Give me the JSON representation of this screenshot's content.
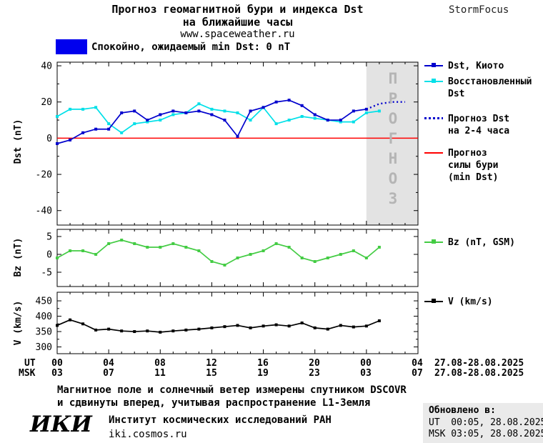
{
  "header": {
    "title_line1": "Прогноз геомагнитной бури и индекса Dst",
    "title_line2": "на ближайшие часы",
    "website": "www.spaceweather.ru",
    "brand": "StormFocus"
  },
  "status": {
    "label": "Спокойно, ожидаемый min Dst: 0 nT",
    "box_color": "#0000EE"
  },
  "forecast_band": {
    "label": "ПРОГНОЗ",
    "fill": "#E3E3E3",
    "text_color": "#B5B5B5"
  },
  "legend": {
    "dst_kyoto": "Dst, Киото",
    "dst_restored_line1": "Восстановленный",
    "dst_restored_line2": "Dst",
    "dst_forecast_line1": "Прогноз Dst",
    "dst_forecast_line2": "на 2-4 часа",
    "storm_line1": "Прогноз",
    "storm_line2": "силы бури",
    "storm_line3": "(min Dst)",
    "bz": "Bz (nT, GSM)",
    "v": "V (km/s)"
  },
  "xaxis": {
    "ut_label": "UT",
    "msk_label": "MSK",
    "ut_ticks": [
      "00",
      "04",
      "08",
      "12",
      "16",
      "20",
      "00",
      "04"
    ],
    "msk_ticks": [
      "03",
      "07",
      "11",
      "15",
      "19",
      "23",
      "03",
      "07"
    ],
    "ut_date": "27.08-28.08.2025",
    "msk_date": "27.08-28.08.2025"
  },
  "footer": {
    "note_line1": "Магнитное поле и солнечный ветер измерены спутником DSCOVR",
    "note_line2": "и сдвинуты вперед, учитывая распространение L1-Земля",
    "logo": "ИКИ",
    "institute": "Институт космических исследований РАН",
    "site": "iki.cosmos.ru",
    "updated_label": "Обновлено в:",
    "updated_ut": "UT  00:05, 28.08.2025",
    "updated_msk": "MSK 03:05, 28.08.2025"
  },
  "chart_data": [
    {
      "type": "line",
      "ylabel": "Dst (nT)",
      "xlim": [
        0,
        28
      ],
      "ylim": [
        -48,
        42
      ],
      "yticks": [
        40,
        20,
        0,
        -20,
        -40
      ],
      "yminor": [
        30,
        10,
        -10,
        -30
      ],
      "xticks": [
        0,
        4,
        8,
        12,
        16,
        20,
        24,
        28
      ],
      "hline": {
        "y": 0,
        "color": "#FF0000",
        "name": "Прогноз силы бури (min Dst)"
      },
      "forecast_region": {
        "x0": 24,
        "x1": 28,
        "color": "#E3E3E3",
        "label": "ПРОГНОЗ"
      },
      "series": [
        {
          "name": "Восстановленный Dst",
          "color": "#00E0E8",
          "marker": "square",
          "x": [
            0,
            1,
            2,
            3,
            4,
            5,
            6,
            7,
            8,
            9,
            10,
            11,
            12,
            13,
            14,
            15,
            16,
            17,
            18,
            19,
            20,
            21,
            22,
            23,
            24,
            25
          ],
          "values": [
            12,
            16,
            16,
            17,
            8,
            3,
            8,
            9,
            10,
            13,
            14,
            19,
            16,
            15,
            14,
            10,
            17,
            8,
            10,
            12,
            11,
            10,
            9,
            9,
            14,
            15
          ]
        },
        {
          "name": "Dst, Киото",
          "color": "#0000CD",
          "marker": "square",
          "x": [
            0,
            1,
            2,
            3,
            4,
            5,
            6,
            7,
            8,
            9,
            10,
            11,
            12,
            13,
            14,
            15,
            16,
            17,
            18,
            19,
            20,
            21,
            22,
            23,
            24
          ],
          "values": [
            -3,
            -1,
            3,
            5,
            5,
            14,
            15,
            10,
            13,
            15,
            14,
            15,
            13,
            10,
            1,
            15,
            17,
            20,
            21,
            18,
            13,
            10,
            10,
            15,
            16
          ]
        },
        {
          "name": "Прогноз Dst на 2-4 часа",
          "color": "#0000CD",
          "style": "dotted",
          "x": [
            24,
            25,
            26,
            27
          ],
          "values": [
            16,
            19,
            20,
            20
          ]
        }
      ]
    },
    {
      "type": "line",
      "ylabel": "Bz (nT)",
      "xlim": [
        0,
        28
      ],
      "ylim": [
        -9,
        7
      ],
      "yticks": [
        5,
        0,
        -5
      ],
      "xticks": [
        0,
        4,
        8,
        12,
        16,
        20,
        24,
        28
      ],
      "series": [
        {
          "name": "Bz (nT, GSM)",
          "color": "#44CC44",
          "marker": "square",
          "x": [
            0,
            1,
            2,
            3,
            4,
            5,
            6,
            7,
            8,
            9,
            10,
            11,
            12,
            13,
            14,
            15,
            16,
            17,
            18,
            19,
            20,
            21,
            22,
            23,
            24,
            25
          ],
          "values": [
            -1,
            1,
            1,
            0,
            3,
            4,
            3,
            2,
            2,
            3,
            2,
            1,
            -2,
            -3,
            -1,
            0,
            1,
            3,
            2,
            -1,
            -2,
            -1,
            0,
            1,
            -1,
            2
          ]
        }
      ]
    },
    {
      "type": "line",
      "ylabel": "V (km/s)",
      "xlim": [
        0,
        28
      ],
      "ylim": [
        278,
        478
      ],
      "yticks": [
        450,
        400,
        350,
        300
      ],
      "yminor": [
        425,
        375,
        325
      ],
      "xticks": [
        0,
        4,
        8,
        12,
        16,
        20,
        24,
        28
      ],
      "series": [
        {
          "name": "V (km/s)",
          "color": "#000000",
          "marker": "square",
          "x": [
            0,
            1,
            2,
            3,
            4,
            5,
            6,
            7,
            8,
            9,
            10,
            11,
            12,
            13,
            14,
            15,
            16,
            17,
            18,
            19,
            20,
            21,
            22,
            23,
            24,
            25
          ],
          "values": [
            370,
            388,
            375,
            355,
            358,
            352,
            350,
            352,
            348,
            352,
            355,
            358,
            362,
            366,
            370,
            362,
            368,
            372,
            368,
            378,
            362,
            358,
            370,
            365,
            368,
            385
          ]
        }
      ]
    }
  ]
}
